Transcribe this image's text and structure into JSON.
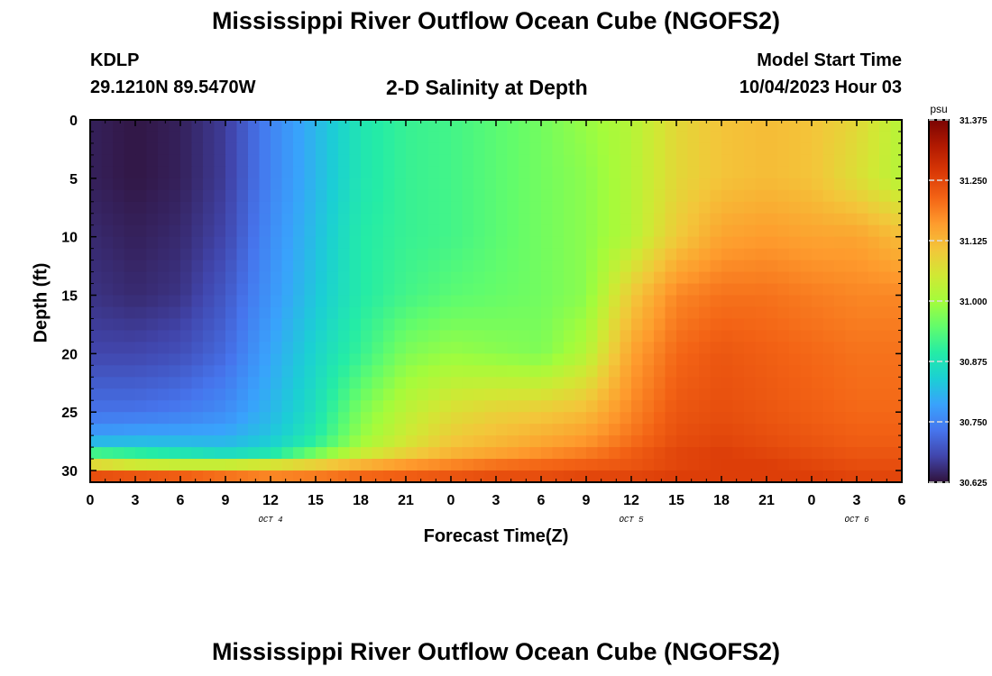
{
  "header": {
    "title": "Mississippi River Outflow Ocean Cube (NGOFS2)",
    "station": "KDLP",
    "coords": "29.1210N  89.5470W",
    "subtitle": "2-D Salinity at Depth",
    "model_start_label": "Model Start Time",
    "model_start_value": "10/04/2023 Hour 03",
    "repeated_title": "Mississippi River Outflow Ocean Cube (NGOFS2)"
  },
  "chart_data": {
    "type": "heatmap",
    "title": "2-D Salinity at Depth",
    "xlabel": "Forecast Time(Z)",
    "ylabel": "Depth (ft)",
    "x_tick_labels": [
      "0",
      "3",
      "6",
      "9",
      "12",
      "15",
      "18",
      "21",
      "0",
      "3",
      "6",
      "9",
      "12",
      "15",
      "18",
      "21",
      "0",
      "3",
      "6"
    ],
    "x_hours": [
      0,
      3,
      6,
      9,
      12,
      15,
      18,
      21,
      24,
      27,
      30,
      33,
      36,
      39,
      42,
      45,
      48,
      51,
      54
    ],
    "date_labels": [
      {
        "text": "OCT 4",
        "hour": 12
      },
      {
        "text": "OCT 5",
        "hour": 36
      },
      {
        "text": "OCT 6",
        "hour": 51
      }
    ],
    "y_ticks": [
      0,
      5,
      10,
      15,
      20,
      25,
      30
    ],
    "ylim": [
      0,
      31
    ],
    "xlim": [
      0,
      54
    ],
    "colorbar": {
      "unit": "psu",
      "min": 30.625,
      "max": 31.375,
      "ticks": [
        "31.375",
        "31.250",
        "31.125",
        "31.000",
        "30.875",
        "30.750",
        "30.625"
      ],
      "colors": [
        "#30123b",
        "#4145ab",
        "#4675ed",
        "#39a2fc",
        "#1bcfd4",
        "#24eca6",
        "#61fc6c",
        "#a4fc3b",
        "#d1e834",
        "#f3c63a",
        "#fe9b2d",
        "#f36315",
        "#d93806",
        "#b11901",
        "#7a0403"
      ]
    },
    "anchors_hours": [
      0,
      3,
      6,
      9,
      12,
      15,
      18,
      21,
      24,
      27,
      30,
      33,
      36,
      39,
      42,
      45,
      48,
      51,
      54
    ],
    "anchors_depths": [
      0,
      5,
      10,
      15,
      20,
      25,
      27.3,
      28.5,
      29.5,
      30.5,
      31
    ],
    "salinity_grid": [
      [
        30.64,
        30.63,
        30.64,
        30.67,
        30.75,
        30.81,
        30.88,
        30.91,
        30.92,
        30.94,
        30.96,
        30.99,
        31.02,
        31.08,
        31.11,
        31.12,
        31.11,
        31.08,
        31.02
      ],
      [
        30.64,
        30.63,
        30.64,
        30.67,
        30.75,
        30.81,
        30.88,
        30.91,
        30.92,
        30.94,
        30.96,
        30.98,
        31.02,
        31.08,
        31.11,
        31.12,
        31.11,
        31.07,
        31.02
      ],
      [
        30.65,
        30.64,
        30.65,
        30.68,
        30.76,
        30.82,
        30.89,
        30.91,
        30.92,
        30.94,
        30.96,
        30.98,
        31.02,
        31.1,
        31.15,
        31.16,
        31.15,
        31.15,
        31.12
      ],
      [
        30.66,
        30.65,
        30.66,
        30.7,
        30.77,
        30.83,
        30.89,
        30.92,
        30.94,
        30.95,
        30.96,
        30.98,
        31.1,
        31.18,
        31.2,
        31.2,
        31.19,
        31.18,
        31.18
      ],
      [
        30.68,
        30.68,
        30.69,
        30.72,
        30.79,
        30.85,
        30.91,
        30.97,
        30.99,
        30.98,
        30.97,
        31.02,
        31.15,
        31.21,
        31.23,
        31.22,
        31.21,
        31.2,
        31.2
      ],
      [
        30.73,
        30.73,
        30.74,
        30.76,
        30.81,
        30.87,
        30.97,
        31.03,
        31.07,
        31.09,
        31.1,
        31.12,
        31.18,
        31.23,
        31.24,
        31.23,
        31.22,
        31.21,
        31.21
      ],
      [
        30.79,
        30.8,
        30.8,
        30.8,
        30.83,
        30.89,
        30.99,
        31.05,
        31.1,
        31.12,
        31.14,
        31.16,
        31.2,
        31.24,
        31.25,
        31.24,
        31.23,
        31.22,
        31.22
      ],
      [
        30.92,
        30.9,
        30.88,
        30.86,
        30.88,
        30.96,
        31.04,
        31.09,
        31.13,
        31.15,
        31.17,
        31.19,
        31.22,
        31.25,
        31.26,
        31.25,
        31.24,
        31.23,
        31.23
      ],
      [
        31.08,
        31.05,
        31.04,
        31.04,
        31.06,
        31.09,
        31.13,
        31.16,
        31.18,
        31.2,
        31.21,
        31.22,
        31.23,
        31.25,
        31.26,
        31.26,
        31.25,
        31.24,
        31.24
      ],
      [
        31.24,
        31.23,
        31.22,
        31.2,
        31.18,
        31.19,
        31.21,
        31.22,
        31.23,
        31.24,
        31.24,
        31.25,
        31.25,
        31.26,
        31.26,
        31.26,
        31.26,
        31.25,
        31.25
      ],
      [
        31.28,
        31.27,
        31.26,
        31.24,
        31.23,
        31.23,
        31.24,
        31.25,
        31.25,
        31.25,
        31.26,
        31.26,
        31.26,
        31.26,
        31.26,
        31.26,
        31.26,
        31.26,
        31.26
      ]
    ]
  }
}
